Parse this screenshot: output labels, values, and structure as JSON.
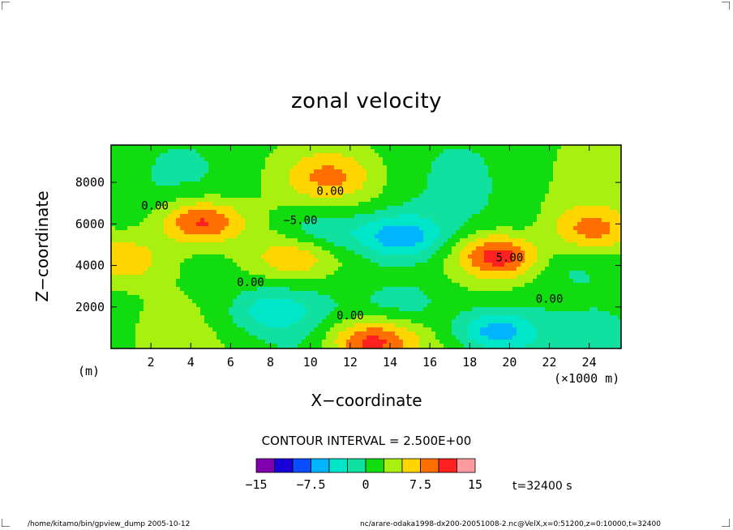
{
  "chart_data": {
    "type": "heatmap",
    "title": "zonal velocity",
    "xlabel": "X−coordinate",
    "ylabel": "Z−coordinate",
    "x_unit_label": "(×1000 m)",
    "y_unit_label": "(m)",
    "xlim": [
      0,
      25.6
    ],
    "ylim": [
      0,
      9800
    ],
    "x_ticks": [
      "2",
      "4",
      "6",
      "8",
      "10",
      "12",
      "14",
      "16",
      "18",
      "20",
      "22",
      "24"
    ],
    "x_tick_values": [
      2,
      4,
      6,
      8,
      10,
      12,
      14,
      16,
      18,
      20,
      22,
      24
    ],
    "y_ticks": [
      "2000",
      "4000",
      "6000",
      "8000"
    ],
    "y_tick_values": [
      2000,
      4000,
      6000,
      8000
    ],
    "contour_interval_text": "CONTOUR INTERVAL = 2.500E+00",
    "contour_labels": [
      "0.00",
      "0.00",
      "−5.00",
      "0.00",
      "5.00",
      "0.00",
      "0.00"
    ],
    "colorbar": {
      "levels": [
        -15,
        -12.5,
        -10,
        -7.5,
        -5,
        -2.5,
        0,
        2.5,
        5,
        7.5,
        10,
        12.5,
        15
      ],
      "tick_labels": [
        "−15",
        "−7.5",
        "0",
        "7.5",
        "15"
      ],
      "tick_values": [
        -15,
        -7.5,
        0,
        7.5,
        15
      ],
      "colors": [
        "#8000b0",
        "#1a00d9",
        "#0a4cff",
        "#00b4ff",
        "#00e6c8",
        "#10e0a0",
        "#10dc10",
        "#a8f010",
        "#ffd600",
        "#ff7000",
        "#ff2020",
        "#ff9aa0"
      ]
    },
    "features": [
      {
        "x": 4.5,
        "z": 6100,
        "value": 10
      },
      {
        "x": 9.2,
        "z": 4450,
        "value": 6
      },
      {
        "x": 10.5,
        "z": 5600,
        "value": -5
      },
      {
        "x": 14.5,
        "z": 5400,
        "value": -8
      },
      {
        "x": 13.0,
        "z": 300,
        "value": 10
      },
      {
        "x": 19.5,
        "z": 4500,
        "value": 11
      },
      {
        "x": 19.3,
        "z": 800,
        "value": -9
      },
      {
        "x": 15.0,
        "z": 2200,
        "value": -3
      },
      {
        "x": 8.0,
        "z": 1800,
        "value": -5
      },
      {
        "x": 11.0,
        "z": 8300,
        "value": 5
      },
      {
        "x": 21.0,
        "z": 5200,
        "value": -2
      },
      {
        "x": 0.5,
        "z": 4300,
        "value": 6
      },
      {
        "x": 24.0,
        "z": 5700,
        "value": 6
      },
      {
        "x": 23.0,
        "z": 4000,
        "value": -2
      }
    ],
    "time_label": "t=32400  s"
  },
  "footer": {
    "left": "/home/kitamo/bin/gpview_dump  2005-10-12",
    "right": "nc/arare-odaka1998-dx200-20051008-2.nc@VelX,x=0:51200,z=0:10000,t=32400"
  }
}
